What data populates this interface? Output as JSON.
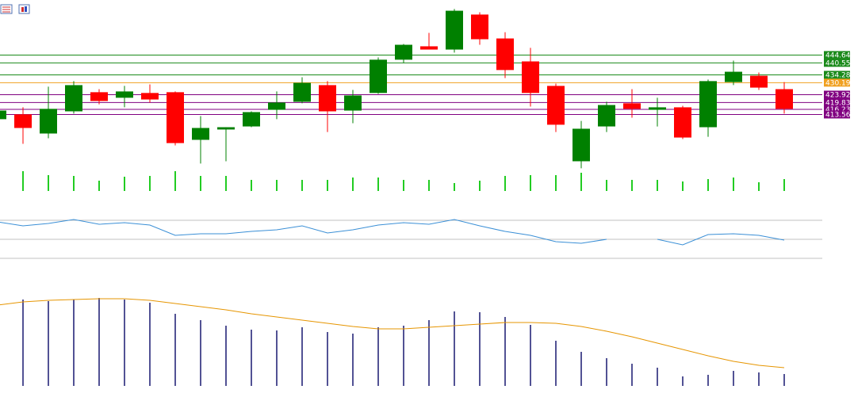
{
  "chart_data": [
    {
      "type": "candlestick",
      "open": [
        411.1,
        413.6,
        403.6,
        415.2,
        425.2,
        422.3,
        424.8,
        425.2,
        400.3,
        405.7,
        407.3,
        416.0,
        420.2,
        428.9,
        415.6,
        424.8,
        442.2,
        449.2,
        447.5,
        465.8,
        453.3,
        441.3,
        428.5,
        389.1,
        407.3,
        419.4,
        416.0,
        417.3,
        406.9,
        430.5,
        433.8,
        426.8
      ],
      "high": [
        416.5,
        417.3,
        428.1,
        431.0,
        426.8,
        428.5,
        429.3,
        425.6,
        412.7,
        406.9,
        415.2,
        425.6,
        433.0,
        431.0,
        426.4,
        443.4,
        450.4,
        456.2,
        468.7,
        467.0,
        456.6,
        448.4,
        429.7,
        410.2,
        420.2,
        426.8,
        422.3,
        418.1,
        431.8,
        441.7,
        435.5,
        430.5
      ],
      "low": [
        410.7,
        398.2,
        401.1,
        414.0,
        418.9,
        417.3,
        419.8,
        397.4,
        387.9,
        389.1,
        406.9,
        411.1,
        419.4,
        404.4,
        409.0,
        424.3,
        440.5,
        447.5,
        445.9,
        450.0,
        432.6,
        417.7,
        404.4,
        385.4,
        404.4,
        411.9,
        407.3,
        400.7,
        401.9,
        428.9,
        426.4,
        414.0
      ],
      "close": [
        415.6,
        406.5,
        416.5,
        428.9,
        420.6,
        425.6,
        421.4,
        398.6,
        406.5,
        406.9,
        414.8,
        419.8,
        430.1,
        415.2,
        423.5,
        442.2,
        450.0,
        447.5,
        467.8,
        452.9,
        436.8,
        424.8,
        408.2,
        406.1,
        418.5,
        416.5,
        417.3,
        401.5,
        431.0,
        435.9,
        427.6,
        416.5
      ],
      "up_color": "#008000",
      "down_color": "#ff0000",
      "ylim": [
        384,
        473
      ],
      "levels": [
        444.64,
        440.55,
        434.28,
        430.19,
        423.92,
        419.83,
        416.23,
        413.56
      ],
      "level_colors": [
        "#1a8a1a",
        "#1a8a1a",
        "#1a8a1a",
        "#f0a020",
        "#800080",
        "#800080",
        "#800080",
        "#800080"
      ]
    },
    {
      "type": "bar",
      "values": [
        null,
        25,
        20,
        19,
        13,
        18,
        19,
        25,
        19,
        19,
        14,
        14,
        14,
        14,
        17,
        17,
        14,
        14,
        10,
        13,
        19,
        20,
        20,
        23,
        14,
        14,
        14,
        12,
        15,
        17,
        11,
        15
      ],
      "color": "#22cc22",
      "ylim": [
        0,
        30
      ]
    },
    {
      "type": "line",
      "values": [
        68.3,
        64.2,
        66.7,
        70.8,
        65.8,
        67.5,
        65.0,
        54.2,
        55.8,
        55.8,
        58.3,
        60.0,
        64.2,
        56.7,
        60.0,
        65.0,
        67.5,
        65.8,
        70.8,
        64.2,
        58.3,
        54.2,
        47.5,
        45.8,
        50.0,
        null,
        50.0,
        44.2,
        55.0,
        55.8,
        54.2,
        49.2
      ],
      "color": "#3a8fd6",
      "ylim": [
        20,
        80
      ],
      "levels": [
        70,
        50,
        30
      ],
      "level_color": "#c0c0c0"
    },
    {
      "type": "macd",
      "values": [
        null,
        109,
        107,
        109,
        111,
        109,
        105,
        91,
        83,
        76,
        71,
        70,
        74,
        68,
        66,
        74,
        76,
        83,
        94,
        93,
        87,
        77,
        57,
        43,
        35,
        28,
        23,
        12,
        14,
        19,
        17,
        15
      ],
      "signal": [
        102,
        106,
        108,
        109,
        110,
        110,
        108,
        104,
        100,
        96,
        91,
        87,
        83,
        79,
        75,
        72,
        72,
        74,
        76,
        78,
        80,
        80,
        79,
        75,
        69,
        62,
        54,
        46,
        38,
        31,
        26,
        23
      ],
      "color": "#191970",
      "signal_color": "#e69500",
      "ylim": [
        0,
        120
      ]
    }
  ]
}
